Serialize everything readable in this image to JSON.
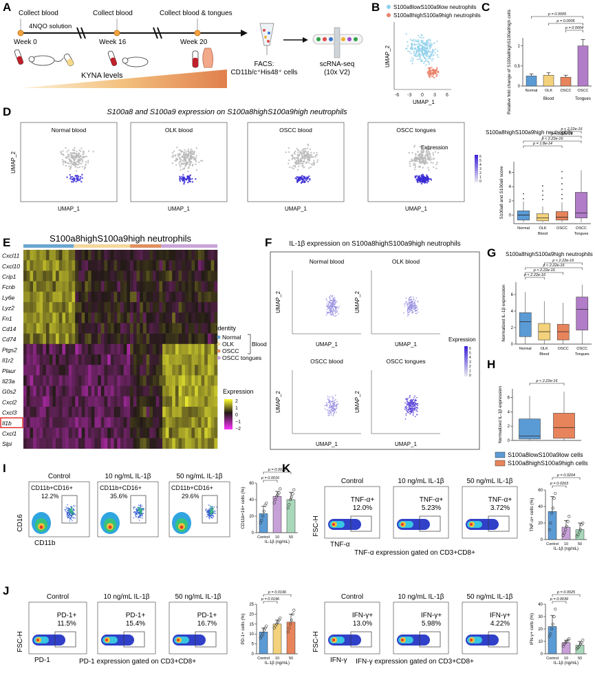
{
  "panels": {
    "A": {
      "letter": "A",
      "steps": [
        "Collect blood",
        "Collect blood",
        "Collect blood & tongues"
      ],
      "treatment": "4NQO solution",
      "weeks": [
        "Week 0",
        "Week 16",
        "Week 20"
      ],
      "kyna": "KYNA levels",
      "facs_label": "FACS:",
      "facs_cells": "CD11b/c⁺His48⁺ cells",
      "scrna_label": "scRNA-seq",
      "scrna_platform": "(10x V2)"
    },
    "B": {
      "letter": "B",
      "legend": [
        "S100a8lowS100a9low neutrophils",
        "S100a8highS100a9high neutrophils"
      ],
      "xlabel": "UMAP_1",
      "ylabel": "UMAP_2",
      "xticks": [
        "-6",
        "-3",
        "0",
        "3",
        "6"
      ]
    },
    "C": {
      "letter": "C"
    },
    "D": {
      "letter": "D",
      "title": "S100a8 and S100a9 expression on S100a8highS100a9high neutrophils",
      "subplots": [
        "Normal blood",
        "OLK blood",
        "OSCC blood",
        "OSCC tongues"
      ],
      "xlabel": "UMAP_1",
      "ylabel": "UMAP_2",
      "legend_title": "Expression",
      "scale": [
        "6",
        "5",
        "4",
        "3",
        "2",
        "1",
        "0"
      ]
    },
    "D2": {
      "title": "S100a8highS100a9high neutrophils"
    },
    "E": {
      "letter": "E",
      "title": "S100a8highS100a9high neutrophils",
      "genes": [
        "Cxcl11",
        "Cxcl10",
        "Crip1",
        "Fcnb",
        "Ly6e",
        "Lyz2",
        "Fn1",
        "Cd14",
        "Cd74",
        "Ptgs2",
        "Il1r2",
        "Plaur",
        "Il23a",
        "G0s2",
        "Cxcl2",
        "Cxcl3",
        "Il1b",
        "Cxcl1",
        "Slpi"
      ],
      "identity_title": "Identity",
      "identity": [
        "Normal",
        "OLK",
        "OSCC",
        "OSCC tongues"
      ],
      "blood": "Blood",
      "expr_title": "Expression",
      "expr_ticks": [
        "2",
        "1",
        "0",
        "−1",
        "−2"
      ]
    },
    "F": {
      "letter": "F",
      "title": "IL-1β expression on S100a8highS100a9high neutrophils",
      "subplots": [
        "Normal blood",
        "OLK blood",
        "OSCC blood",
        "OSCC tongues"
      ],
      "xlabel": "UMAP_1",
      "ylabel": "UMAP_2",
      "legend_title": "Expression",
      "scale": [
        "6",
        "5",
        "4",
        "3",
        "2",
        "1",
        "0"
      ]
    },
    "G": {
      "letter": "G",
      "title": "S100a8highS100a9high neutrophils"
    },
    "H": {
      "letter": "H"
    },
    "I": {
      "letter": "I",
      "plots": [
        {
          "title": "Control",
          "gate": "CD11b+CD16+",
          "pct": "12.2%"
        },
        {
          "title": "10 ng/mL IL-1β",
          "gate": "CD11b+CD16+",
          "pct": "35.6%"
        },
        {
          "title": "50 ng/mL IL-1β",
          "gate": "CD11b+CD16+",
          "pct": "29.6%"
        }
      ],
      "xlabel": "CD11b",
      "ylabel": "CD16"
    },
    "J": {
      "letter": "J",
      "plots": [
        {
          "title": "Control",
          "gate": "PD-1+",
          "pct": "11.5%"
        },
        {
          "title": "10 ng/mL IL-1β",
          "gate": "PD-1+",
          "pct": "15.4%"
        },
        {
          "title": "50 ng/mL IL-1β",
          "gate": "PD-1+",
          "pct": "16.7%"
        }
      ],
      "xlabel": "PD-1",
      "ylabel": "FSC-H",
      "caption": "PD-1 expression gated on CD3+CD8+"
    },
    "K": {
      "letter": "K",
      "plots": [
        {
          "title": "Control",
          "gate": "TNF-α+",
          "pct": "12.0%"
        },
        {
          "title": "10 ng/mL IL-1β",
          "gate": "TNF-α+",
          "pct": "5.23%"
        },
        {
          "title": "50 ng/mL IL-1β",
          "gate": "TNF-α+",
          "pct": "3.72%"
        }
      ],
      "xlabel": "TNF-α",
      "ylabel": "FSC-H",
      "caption": "TNF-α expression gated on CD3+CD8+"
    },
    "K2": {
      "plots": [
        {
          "gate": "IFN-γ+",
          "pct": "13.0%"
        },
        {
          "gate": "IFN-γ+",
          "pct": "5.98%"
        },
        {
          "gate": "IFN-γ+",
          "pct": "4.22%"
        }
      ],
      "xlabel": "IFN-γ",
      "ylabel": "FSC-H",
      "caption": "IFN-γ expression gated on CD3+CD8+"
    }
  },
  "chart_data": [
    {
      "id": "C",
      "type": "bar",
      "categories": [
        "Normal",
        "OLK",
        "OSCC",
        "OSCC"
      ],
      "group_labels": [
        "Blood",
        "Tongues"
      ],
      "values": [
        0.25,
        0.27,
        0.22,
        1.0
      ],
      "errors": [
        0.05,
        0.06,
        0.05,
        0.16
      ],
      "colors": [
        "#5b9bd5",
        "#f3d27b",
        "#e8845b",
        "#b17cc8"
      ],
      "ylabel": "Relative fold change of S100a8highS100a9high cells",
      "ylim": [
        0,
        1.2
      ],
      "yticks": [
        0,
        0.5,
        1.0
      ],
      "pvalues": [
        "p = 0.0005",
        "p = 0.0005",
        "p = 0.0004"
      ]
    },
    {
      "id": "D2",
      "type": "box",
      "categories": [
        "Normal",
        "OLK",
        "OSCC",
        "OSCC"
      ],
      "group_labels": [
        "Blood",
        "Tongues"
      ],
      "boxes": [
        [
          -1,
          -0.7,
          0,
          0.6,
          1.9
        ],
        [
          -1,
          -0.8,
          -0.4,
          0.2,
          1.2
        ],
        [
          -1,
          -0.7,
          -0.3,
          0.5,
          1.8
        ],
        [
          -1,
          -0.4,
          0.3,
          3.2,
          6.3
        ]
      ],
      "colors": [
        "#5b9bd5",
        "#f3d27b",
        "#e8845b",
        "#b17cc8"
      ],
      "ylabel": "S100a8 and S100a9 score",
      "ylim": [
        -1.2,
        7.5
      ],
      "yticks": [
        0,
        2,
        4,
        6
      ],
      "pvalues": [
        "p = 1.8e-14",
        "p < 2.22e-16",
        "p < 2.22e-16",
        "p < 2.22e-16"
      ]
    },
    {
      "id": "G",
      "type": "box",
      "categories": [
        "Normal",
        "OLK",
        "OSCC",
        "OSCC"
      ],
      "group_labels": [
        "Blood",
        "Tongues"
      ],
      "boxes": [
        [
          0,
          0.9,
          2.7,
          3.8,
          6.3
        ],
        [
          0,
          0.5,
          1.5,
          2.5,
          5.2
        ],
        [
          0,
          0.5,
          1.5,
          2.4,
          5.0
        ],
        [
          0,
          1.7,
          4.2,
          5.7,
          7.2
        ]
      ],
      "colors": [
        "#5b9bd5",
        "#f3d27b",
        "#e8845b",
        "#b17cc8"
      ],
      "ylabel": "Normalized IL-1β expression",
      "ylim": [
        0,
        7.5
      ],
      "yticks": [
        0,
        2,
        4,
        6
      ],
      "pvalues": [
        "p < 2.22e-16",
        "p < 2.22e-16",
        "p < 2.22e-16",
        "p < 2.22e-16"
      ]
    },
    {
      "id": "H",
      "type": "box",
      "categories": [
        "S100a8lowS100a9low cells",
        "S100a8highS100a9high cells"
      ],
      "boxes": [
        [
          0,
          0.2,
          0.6,
          3.0,
          6.2
        ],
        [
          0,
          0.3,
          1.8,
          3.8,
          6.8
        ]
      ],
      "colors": [
        "#5b9bd5",
        "#e8845b"
      ],
      "ylabel": "Normalized IL-1β expression",
      "ylim": [
        0,
        7.2
      ],
      "yticks": [
        0,
        2,
        4,
        6
      ],
      "pvalues": [
        "p < 2.22e-16"
      ]
    },
    {
      "id": "I",
      "type": "bar",
      "categories": [
        "Control",
        "10",
        "50"
      ],
      "xlabel": "IL-1β (ng/mL)",
      "values": [
        23,
        44,
        40
      ],
      "errors": [
        9,
        6,
        9
      ],
      "points": [
        [
          12,
          15,
          20,
          26,
          33,
          36
        ],
        [
          36,
          40,
          44,
          46,
          48,
          53
        ],
        [
          30,
          34,
          40,
          43,
          47,
          52
        ]
      ],
      "colors": [
        "#5b9bd5",
        "#c7a0d8",
        "#a8d8b9"
      ],
      "ylabel": "CD11b+16+ cells (%)",
      "ylim": [
        0,
        60
      ],
      "yticks": [
        0,
        20,
        40,
        60
      ],
      "pvalues": [
        "p = 0.0016",
        "p = 0.0028"
      ]
    },
    {
      "id": "J",
      "type": "bar",
      "categories": [
        "Control",
        "10",
        "50"
      ],
      "xlabel": "IL-1β (ng/mL)",
      "values": [
        11,
        15,
        16
      ],
      "errors": [
        2,
        2,
        4
      ],
      "points": [
        [
          8,
          9,
          10,
          12,
          13,
          14
        ],
        [
          13,
          14,
          15,
          16,
          17,
          18
        ],
        [
          11,
          13,
          15,
          17,
          20,
          22
        ]
      ],
      "colors": [
        "#5b9bd5",
        "#f3d27b",
        "#e8845b"
      ],
      "ylabel": "PD-1+ cells (%)",
      "ylim": [
        0,
        25
      ],
      "yticks": [
        0,
        5,
        10,
        15,
        20,
        25
      ],
      "pvalues": [
        "p = 0.0196",
        "p = 0.0196"
      ]
    },
    {
      "id": "K",
      "type": "bar",
      "categories": [
        "Control",
        "10",
        "50"
      ],
      "xlabel": "IL-1β (ng/mL)",
      "values": [
        34,
        15,
        12
      ],
      "errors": [
        18,
        8,
        8
      ],
      "points": [
        [
          12,
          20,
          32,
          38,
          50,
          56
        ],
        [
          5,
          8,
          12,
          16,
          22,
          28
        ],
        [
          4,
          6,
          9,
          12,
          18,
          20
        ]
      ],
      "colors": [
        "#5b9bd5",
        "#c7a0d8",
        "#a8d8b9"
      ],
      "ylabel": "TNF-α+ cells (%)",
      "ylim": [
        0,
        60
      ],
      "yticks": [
        0,
        20,
        40,
        60
      ],
      "pvalues": [
        "p = 0.0263",
        "p = 0.0204"
      ]
    },
    {
      "id": "K2",
      "type": "bar",
      "categories": [
        "Control",
        "10",
        "50"
      ],
      "xlabel": "IL-1β (ng/mL)",
      "values": [
        22,
        9,
        7
      ],
      "errors": [
        9,
        2,
        3
      ],
      "points": [
        [
          14,
          16,
          20,
          24,
          30,
          36
        ],
        [
          6,
          8,
          9,
          10,
          11,
          12
        ],
        [
          4,
          5,
          6,
          8,
          9,
          11
        ]
      ],
      "colors": [
        "#5b9bd5",
        "#c7a0d8",
        "#a8d8b9"
      ],
      "ylabel": "IFN-γ+ cells (%)",
      "ylim": [
        0,
        40
      ],
      "yticks": [
        0,
        10,
        20,
        30,
        40
      ],
      "pvalues": [
        "p = 0.0039",
        "p = 0.0025"
      ]
    }
  ]
}
